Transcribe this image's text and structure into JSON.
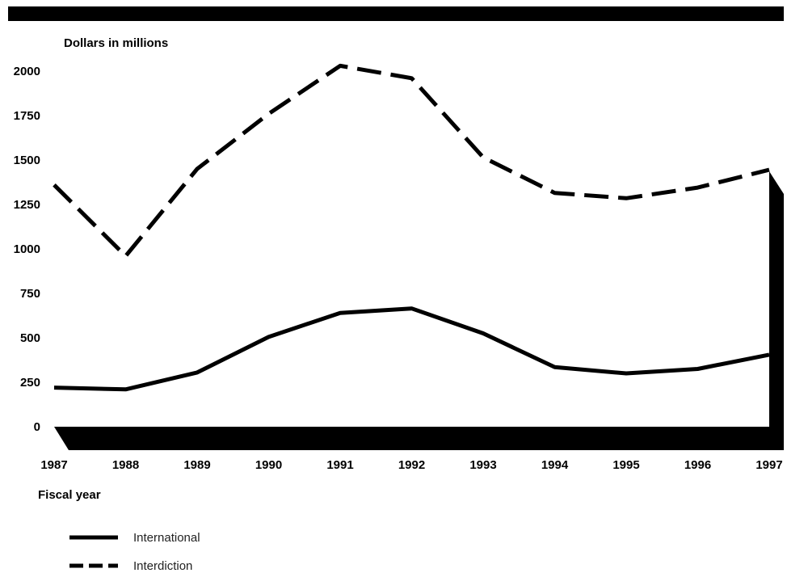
{
  "chart_data": {
    "type": "line",
    "title": "",
    "ylabel": "Dollars in millions",
    "xlabel": "Fiscal year",
    "ylim": [
      0,
      2000
    ],
    "yticks": [
      "0",
      "250",
      "500",
      "750",
      "1000",
      "1250",
      "1500",
      "1750",
      "2000"
    ],
    "x": [
      "1987",
      "1988",
      "1989",
      "1990",
      "1991",
      "1992",
      "1993",
      "1994",
      "1995",
      "1996",
      "1997"
    ],
    "series": [
      {
        "name": "International",
        "style": "solid",
        "values": [
          220,
          210,
          305,
          505,
          640,
          665,
          525,
          335,
          300,
          325,
          405
        ]
      },
      {
        "name": "Interdiction",
        "style": "dashed",
        "values": [
          1360,
          960,
          1450,
          1760,
          2030,
          1960,
          1515,
          1315,
          1285,
          1345,
          1445
        ]
      }
    ],
    "grid": false,
    "legend_position": "bottom-left",
    "colors": {
      "line": "#000000",
      "background": "#ffffff"
    }
  }
}
